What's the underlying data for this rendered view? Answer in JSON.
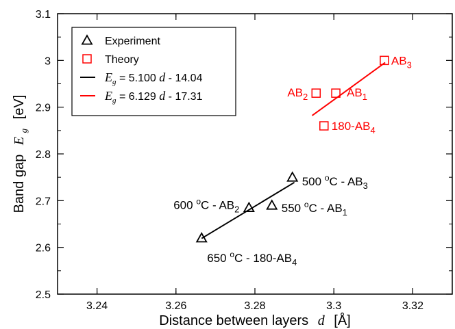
{
  "chart_data": {
    "type": "scatter",
    "xlabel": {
      "text": "Distance between layers",
      "symbol": "d",
      "unit": "[Å]"
    },
    "ylabel": {
      "text": "Band gap",
      "symbol": "E",
      "subscript": "g",
      "unit": "[eV]"
    },
    "xlim": [
      3.23,
      3.33
    ],
    "ylim": [
      2.5,
      3.1
    ],
    "x_ticks": [
      "3.24",
      "3.26",
      "3.28",
      "3.3",
      "3.32"
    ],
    "y_ticks": [
      "2.5",
      "2.6",
      "2.7",
      "2.8",
      "2.9",
      "3",
      "3.1"
    ],
    "grid": false,
    "legend_position": "upper-left",
    "series": [
      {
        "name": "Experiment",
        "marker": "triangle",
        "color": "#000000",
        "points": [
          {
            "x": 3.2665,
            "y": 2.62,
            "label": "650 °C - 180-AB4"
          },
          {
            "x": 3.2785,
            "y": 2.685,
            "label": "600 °C - AB2"
          },
          {
            "x": 3.2843,
            "y": 2.69,
            "label": "550 °C - AB1"
          },
          {
            "x": 3.2895,
            "y": 2.75,
            "label": "500 °C - AB3"
          }
        ]
      },
      {
        "name": "Theory",
        "marker": "square",
        "color": "#ff0000",
        "points": [
          {
            "x": 3.2955,
            "y": 2.93,
            "label": "AB2"
          },
          {
            "x": 3.3005,
            "y": 2.93,
            "label": "AB1"
          },
          {
            "x": 3.2975,
            "y": 2.86,
            "label": "180-AB4"
          },
          {
            "x": 3.3128,
            "y": 3.0,
            "label": "AB3"
          }
        ]
      }
    ],
    "fits": [
      {
        "name": "Eg = 5.100 d - 14.04",
        "slope": 5.1,
        "intercept": -14.04,
        "x_range": [
          3.2665,
          3.29
        ],
        "color": "#000000"
      },
      {
        "name": "Eg = 6.129 d - 17.31",
        "slope": 6.129,
        "intercept": -17.31,
        "x_range": [
          3.2945,
          3.313
        ],
        "color": "#ff0000"
      }
    ],
    "legend": [
      {
        "kind": "triangle",
        "color": "#000000",
        "text": "Experiment"
      },
      {
        "kind": "square",
        "color": "#ff0000",
        "text": "Theory"
      },
      {
        "kind": "line",
        "color": "#000000",
        "sym": "E",
        "sub": "g",
        "eq1": " = 5.100 ",
        "var": "d",
        "eq2": " - 14.04"
      },
      {
        "kind": "line",
        "color": "#ff0000",
        "sym": "E",
        "sub": "g",
        "eq1": " = 6.129 ",
        "var": "d",
        "eq2": " - 17.31"
      }
    ],
    "annotations": [
      {
        "series": 0,
        "point": 3,
        "pre": "500 ",
        "sup": "o",
        "mid": "C - AB",
        "sub": "3",
        "color": "#000000",
        "anchor": "start",
        "dx": 14,
        "dy": 12
      },
      {
        "series": 0,
        "point": 1,
        "pre": "600 ",
        "sup": "o",
        "mid": "C - AB",
        "sub": "2",
        "color": "#000000",
        "anchor": "end",
        "dx": -14,
        "dy": 2
      },
      {
        "series": 0,
        "point": 2,
        "pre": "550 ",
        "sup": "o",
        "mid": "C - AB",
        "sub": "1",
        "color": "#000000",
        "anchor": "start",
        "dx": 14,
        "dy": 10
      },
      {
        "series": 0,
        "point": 0,
        "pre": "650 ",
        "sup": "o",
        "mid": "C - 180-AB",
        "sub": "4",
        "color": "#000000",
        "anchor": "start",
        "dx": 8,
        "dy": 35
      },
      {
        "series": 1,
        "point": 0,
        "pre": "",
        "sup": "",
        "mid": "AB",
        "sub": "2",
        "color": "#ff0000",
        "anchor": "end",
        "dx": -12,
        "dy": 5
      },
      {
        "series": 1,
        "point": 1,
        "pre": "",
        "sup": "",
        "mid": "AB",
        "sub": "1",
        "color": "#ff0000",
        "anchor": "start",
        "dx": 16,
        "dy": 5
      },
      {
        "series": 1,
        "point": 2,
        "pre": "",
        "sup": "",
        "mid": "180-AB",
        "sub": "4",
        "color": "#ff0000",
        "anchor": "start",
        "dx": 11,
        "dy": 6
      },
      {
        "series": 1,
        "point": 3,
        "pre": "",
        "sup": "",
        "mid": "AB",
        "sub": "3",
        "color": "#ff0000",
        "anchor": "start",
        "dx": 10,
        "dy": 6
      }
    ]
  }
}
